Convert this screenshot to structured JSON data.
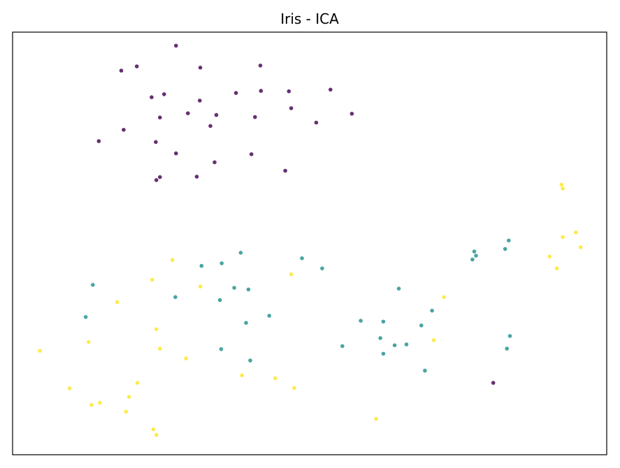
{
  "chart_data": {
    "type": "scatter",
    "title": "Iris - ICA",
    "xlabel": "",
    "ylabel": "",
    "xlim": [
      0,
      100
    ],
    "ylim": [
      0,
      100
    ],
    "grid": false,
    "ticks_shown": false,
    "series": [
      {
        "color": "#440154",
        "points": [
          [
            27.5,
            96.8
          ],
          [
            18.3,
            90.9
          ],
          [
            20.9,
            91.9
          ],
          [
            31.6,
            91.6
          ],
          [
            41.7,
            92.1
          ],
          [
            23.4,
            84.6
          ],
          [
            25.5,
            85.3
          ],
          [
            31.5,
            83.8
          ],
          [
            37.6,
            85.6
          ],
          [
            41.8,
            86.1
          ],
          [
            46.5,
            86.0
          ],
          [
            53.5,
            86.4
          ],
          [
            29.5,
            80.8
          ],
          [
            34.3,
            80.4
          ],
          [
            24.8,
            79.8
          ],
          [
            40.8,
            79.9
          ],
          [
            46.9,
            82.0
          ],
          [
            51.1,
            78.6
          ],
          [
            57.1,
            80.7
          ],
          [
            33.3,
            77.8
          ],
          [
            18.7,
            76.9
          ],
          [
            14.5,
            74.2
          ],
          [
            24.1,
            74.0
          ],
          [
            27.5,
            71.3
          ],
          [
            40.2,
            71.1
          ],
          [
            34.0,
            69.2
          ],
          [
            45.9,
            67.2
          ],
          [
            24.8,
            65.7
          ],
          [
            24.2,
            65.0
          ],
          [
            31.0,
            65.8
          ],
          [
            80.9,
            17.0
          ]
        ]
      },
      {
        "color": "#21918c",
        "points": [
          [
            38.4,
            47.8
          ],
          [
            35.2,
            45.3
          ],
          [
            31.8,
            44.7
          ],
          [
            48.7,
            46.5
          ],
          [
            52.1,
            44.1
          ],
          [
            13.5,
            40.2
          ],
          [
            37.3,
            39.5
          ],
          [
            39.7,
            39.1
          ],
          [
            27.4,
            37.3
          ],
          [
            34.9,
            36.6
          ],
          [
            65.0,
            39.3
          ],
          [
            78.0,
            47.1
          ],
          [
            77.7,
            48.1
          ],
          [
            77.4,
            46.2
          ],
          [
            82.9,
            48.7
          ],
          [
            83.5,
            50.7
          ],
          [
            12.3,
            32.6
          ],
          [
            43.2,
            32.9
          ],
          [
            39.3,
            31.2
          ],
          [
            58.6,
            31.7
          ],
          [
            62.4,
            31.5
          ],
          [
            70.6,
            34.1
          ],
          [
            68.8,
            30.6
          ],
          [
            61.9,
            27.6
          ],
          [
            62.4,
            23.9
          ],
          [
            64.3,
            25.9
          ],
          [
            66.3,
            26.1
          ],
          [
            55.5,
            25.7
          ],
          [
            83.7,
            28.1
          ],
          [
            83.2,
            25.1
          ],
          [
            69.4,
            19.9
          ],
          [
            35.1,
            25.0
          ],
          [
            40.0,
            22.3
          ]
        ]
      },
      {
        "color": "#fde725",
        "points": [
          [
            92.4,
            63.9
          ],
          [
            92.6,
            63.0
          ],
          [
            94.8,
            52.6
          ],
          [
            92.6,
            51.5
          ],
          [
            95.6,
            49.1
          ],
          [
            90.4,
            46.9
          ],
          [
            91.6,
            44.1
          ],
          [
            46.9,
            42.7
          ],
          [
            23.5,
            41.4
          ],
          [
            26.9,
            46.1
          ],
          [
            31.6,
            39.8
          ],
          [
            17.6,
            36.1
          ],
          [
            72.6,
            37.3
          ],
          [
            24.2,
            29.7
          ],
          [
            12.8,
            26.7
          ],
          [
            24.8,
            25.1
          ],
          [
            4.6,
            24.6
          ],
          [
            29.2,
            22.8
          ],
          [
            70.9,
            27.1
          ],
          [
            38.6,
            18.8
          ],
          [
            44.2,
            18.1
          ],
          [
            47.4,
            15.8
          ],
          [
            21.0,
            17.0
          ],
          [
            9.6,
            15.7
          ],
          [
            19.6,
            13.7
          ],
          [
            14.7,
            12.3
          ],
          [
            13.3,
            11.8
          ],
          [
            19.1,
            10.2
          ],
          [
            61.2,
            8.5
          ],
          [
            23.7,
            6.0
          ],
          [
            24.2,
            4.7
          ]
        ]
      }
    ]
  }
}
